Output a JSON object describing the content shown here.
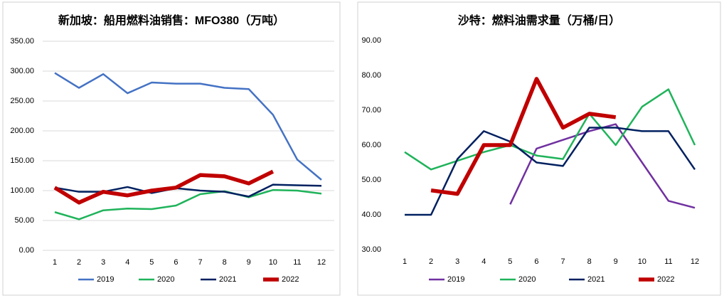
{
  "chart_data": [
    {
      "type": "line",
      "title": "新加坡：船用燃料油销售：MFO380（万吨）",
      "categories": [
        "1",
        "2",
        "3",
        "4",
        "5",
        "6",
        "7",
        "8",
        "9",
        "10",
        "11",
        "12"
      ],
      "ylim": [
        0,
        350
      ],
      "yticks": [
        {
          "value": 0,
          "label": "0.00"
        },
        {
          "value": 50,
          "label": "50.00"
        },
        {
          "value": 100,
          "label": "100.00"
        },
        {
          "value": 150,
          "label": "150.00"
        },
        {
          "value": 200,
          "label": "200.00"
        },
        {
          "value": 250,
          "label": "250.00"
        },
        {
          "value": 300,
          "label": "300.00"
        },
        {
          "value": 350,
          "label": "350.00"
        }
      ],
      "grid": true,
      "legend": "bottom",
      "series": [
        {
          "name": "2019",
          "color": "#4472c4",
          "values": [
            297,
            272,
            295,
            263,
            281,
            279,
            279,
            272,
            270,
            227,
            152,
            118
          ]
        },
        {
          "name": "2020",
          "color": "#1fb35a",
          "values": [
            64,
            52,
            67,
            70,
            69,
            75,
            94,
            99,
            89,
            101,
            100,
            95
          ]
        },
        {
          "name": "2021",
          "color": "#002060",
          "values": [
            105,
            98,
            98,
            106,
            96,
            104,
            100,
            98,
            90,
            110,
            109,
            108
          ]
        },
        {
          "name": "2022",
          "color": "#c00000",
          "values": [
            105,
            80,
            98,
            92,
            100,
            105,
            126,
            124,
            112,
            132,
            null,
            null
          ]
        }
      ]
    },
    {
      "type": "line",
      "title": "沙特：燃料油需求量（万桶/日）",
      "categories": [
        "1",
        "2",
        "3",
        "4",
        "5",
        "6",
        "7",
        "8",
        "9",
        "10",
        "11",
        "12"
      ],
      "ylim": [
        30,
        90
      ],
      "yticks": [
        {
          "value": 30,
          "label": "30.00"
        },
        {
          "value": 40,
          "label": "40.00"
        },
        {
          "value": 50,
          "label": "50.00"
        },
        {
          "value": 60,
          "label": "60.00"
        },
        {
          "value": 70,
          "label": "70.00"
        },
        {
          "value": 80,
          "label": "80.00"
        },
        {
          "value": 90,
          "label": "90.00"
        }
      ],
      "grid": false,
      "legend": "bottom",
      "series": [
        {
          "name": "2019",
          "color": "#7030a0",
          "values": [
            null,
            null,
            null,
            null,
            43,
            59,
            61.5,
            64,
            66,
            55,
            44,
            42
          ]
        },
        {
          "name": "2020",
          "color": "#1fb35a",
          "values": [
            58,
            53,
            55.5,
            58,
            60,
            57,
            56,
            69,
            60,
            71,
            76,
            60
          ]
        },
        {
          "name": "2021",
          "color": "#002060",
          "values": [
            40,
            40,
            56,
            64,
            61,
            55,
            54,
            65,
            65,
            64,
            64,
            53
          ]
        },
        {
          "name": "2022",
          "color": "#c00000",
          "values": [
            null,
            47,
            46,
            60,
            60,
            79,
            65,
            69,
            68,
            null,
            null,
            null
          ]
        }
      ]
    }
  ]
}
